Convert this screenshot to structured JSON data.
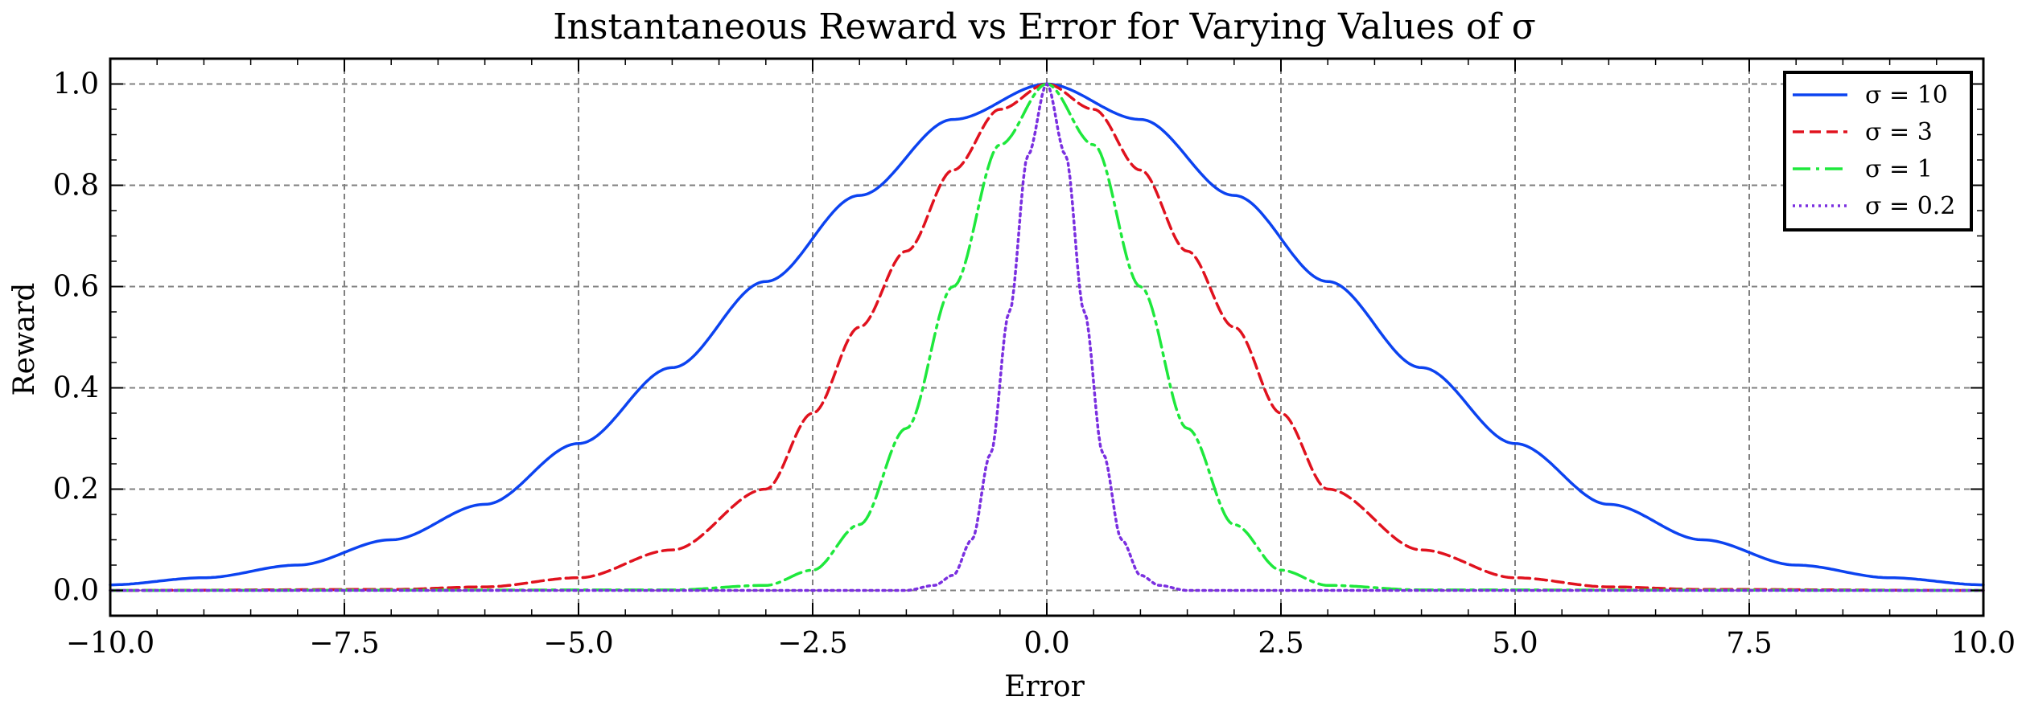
{
  "chart_data": {
    "type": "line",
    "title": "Instantaneous Reward vs Error for Varying Values of σ",
    "xlabel": "Error",
    "ylabel": "Reward",
    "xlim": [
      -10,
      10
    ],
    "ylim": [
      -0.05,
      1.05
    ],
    "x_ticks": [
      -10,
      -7.5,
      -5,
      -2.5,
      0,
      2.5,
      5,
      7.5,
      10
    ],
    "x_tick_labels": [
      "−10.0",
      "−7.5",
      "−5.0",
      "−2.5",
      "0.0",
      "2.5",
      "5.0",
      "7.5",
      "10.0"
    ],
    "y_ticks": [
      0,
      0.2,
      0.4,
      0.6,
      0.8,
      1.0
    ],
    "y_tick_labels": [
      "0.0",
      "0.2",
      "0.4",
      "0.6",
      "0.8",
      "1.0"
    ],
    "grid": true,
    "legend_position": "top-right",
    "series": [
      {
        "name": "σ = 10",
        "color": "#0c43f0",
        "dash": "solid",
        "x": [
          -10,
          -9,
          -8,
          -7,
          -6,
          -5,
          -4,
          -3,
          -2,
          -1,
          0,
          1,
          2,
          3,
          4,
          5,
          6,
          7,
          8,
          9,
          10
        ],
        "y": [
          0.011,
          0.025,
          0.05,
          0.1,
          0.17,
          0.29,
          0.44,
          0.61,
          0.78,
          0.93,
          1.0,
          0.93,
          0.78,
          0.61,
          0.44,
          0.29,
          0.17,
          0.1,
          0.05,
          0.025,
          0.011
        ]
      },
      {
        "name": "σ = 3",
        "color": "#e0121e",
        "dash": "dashed",
        "x": [
          -10,
          -7,
          -6,
          -5,
          -4,
          -3,
          -2.5,
          -2,
          -1.5,
          -1,
          -0.5,
          0,
          0.5,
          1,
          1.5,
          2,
          2.5,
          3,
          4,
          5,
          6,
          7,
          10
        ],
        "y": [
          0.0,
          0.002,
          0.007,
          0.025,
          0.08,
          0.2,
          0.35,
          0.52,
          0.67,
          0.83,
          0.95,
          1.0,
          0.95,
          0.83,
          0.67,
          0.52,
          0.35,
          0.2,
          0.08,
          0.025,
          0.007,
          0.002,
          0.0
        ]
      },
      {
        "name": "σ = 1",
        "color": "#1ee83c",
        "dash": "dashdot",
        "x": [
          -10,
          -4,
          -3,
          -2.5,
          -2,
          -1.5,
          -1,
          -0.5,
          0,
          0.5,
          1,
          1.5,
          2,
          2.5,
          3,
          4,
          10
        ],
        "y": [
          0.0,
          0.001,
          0.01,
          0.04,
          0.13,
          0.32,
          0.6,
          0.88,
          1.0,
          0.88,
          0.6,
          0.32,
          0.13,
          0.04,
          0.01,
          0.001,
          0.0
        ]
      },
      {
        "name": "σ = 0.2",
        "color": "#7a2fe0",
        "dash": "dotted",
        "x": [
          -10,
          -1.5,
          -1.2,
          -1,
          -0.8,
          -0.6,
          -0.4,
          -0.2,
          0,
          0.2,
          0.4,
          0.6,
          0.8,
          1,
          1.2,
          1.5,
          10
        ],
        "y": [
          0.0,
          0.0,
          0.01,
          0.03,
          0.1,
          0.27,
          0.55,
          0.86,
          1.0,
          0.86,
          0.55,
          0.27,
          0.1,
          0.03,
          0.01,
          0.0,
          0.0
        ]
      }
    ]
  }
}
